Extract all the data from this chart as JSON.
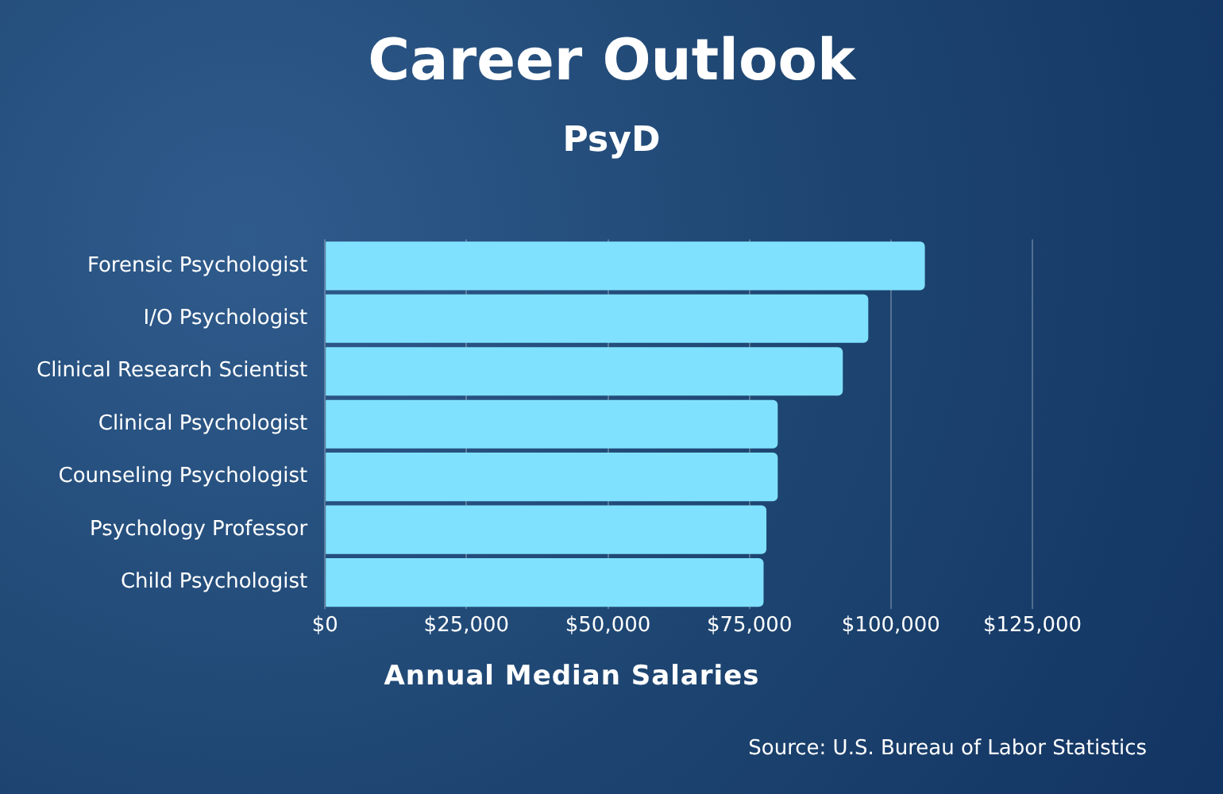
{
  "chart_data": {
    "type": "bar",
    "orientation": "horizontal",
    "title": "Career Outlook",
    "subtitle": "PsyD",
    "xlabel": "Annual Median Salaries",
    "categories": [
      "Forensic Psychologist",
      "I/O Psychologist",
      "Clinical Research Scientist",
      "Clinical Psychologist",
      "Counseling Psychologist",
      "Psychology Professor",
      "Child Psychologist"
    ],
    "values": [
      106000,
      96000,
      91500,
      80000,
      80000,
      78000,
      77500
    ],
    "color": "#80e1ff",
    "xlim": [
      0,
      125000
    ],
    "xticks": [
      {
        "value": 0,
        "label": "$0"
      },
      {
        "value": 25000,
        "label": "$25,000"
      },
      {
        "value": 50000,
        "label": "$50,000"
      },
      {
        "value": 75000,
        "label": "$75,000"
      },
      {
        "value": 100000,
        "label": "$100,000"
      },
      {
        "value": 125000,
        "label": "$125,000"
      }
    ],
    "grid": "x",
    "legend": false,
    "annotations": [
      "Source: U.S. Bureau of Labor Statistics"
    ]
  }
}
